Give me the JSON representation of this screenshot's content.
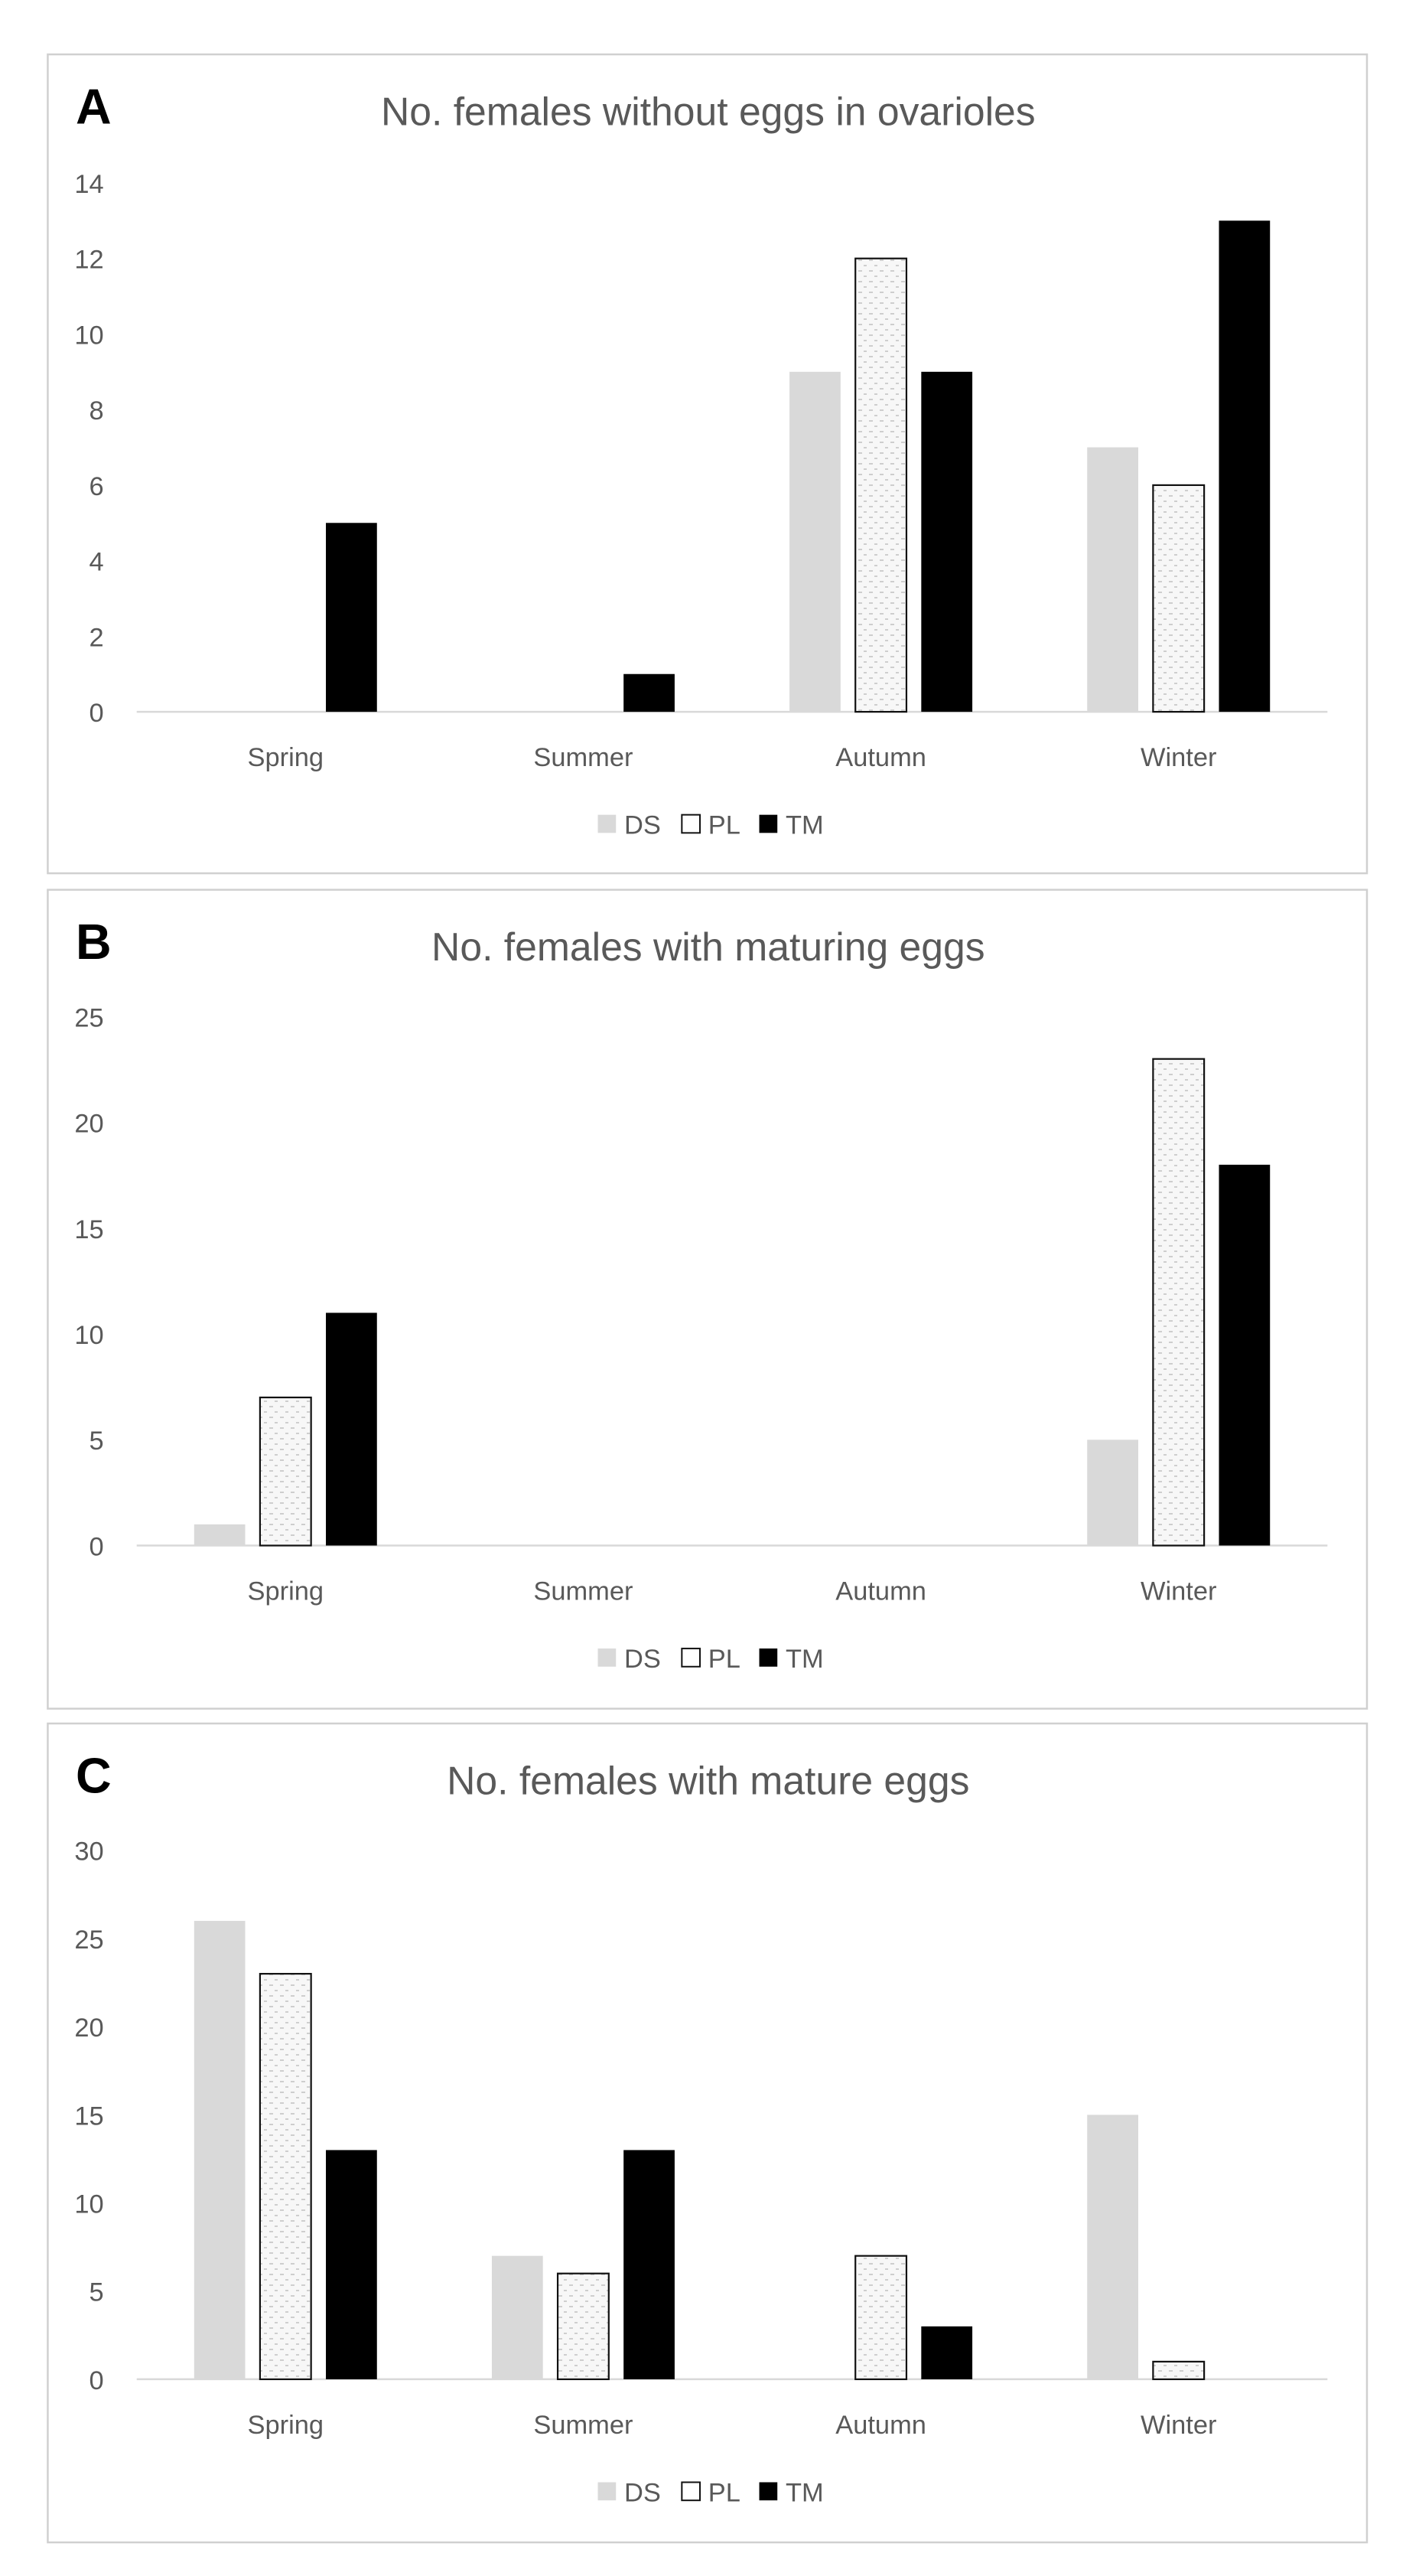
{
  "colors": {
    "DS": "#d9d9d9",
    "PL_fill": "#f7f7f7",
    "PL_stroke": "#111111",
    "TM": "#000000",
    "axis": "#d9d9d9",
    "text": "#595959",
    "panel_border": "#d0d0d0"
  },
  "chart_data": [
    {
      "type": "bar",
      "panel_label": "A",
      "title": "No. females without eggs in ovarioles",
      "categories": [
        "Spring",
        "Summer",
        "Autumn",
        "Winter"
      ],
      "series": [
        {
          "name": "DS",
          "values": [
            0,
            0,
            9,
            7
          ]
        },
        {
          "name": "PL",
          "values": [
            0,
            0,
            12,
            6
          ]
        },
        {
          "name": "TM",
          "values": [
            5,
            1,
            9,
            13
          ]
        }
      ],
      "ylim": [
        0,
        14
      ],
      "yticks": [
        0,
        2,
        4,
        6,
        8,
        10,
        12,
        14
      ],
      "xlabel": "",
      "ylabel": "",
      "grid": false,
      "legend": "bottom-center"
    },
    {
      "type": "bar",
      "panel_label": "B",
      "title": "No. females with maturing eggs",
      "categories": [
        "Spring",
        "Summer",
        "Autumn",
        "Winter"
      ],
      "series": [
        {
          "name": "DS",
          "values": [
            1,
            0,
            0,
            5
          ]
        },
        {
          "name": "PL",
          "values": [
            7,
            0,
            0,
            23
          ]
        },
        {
          "name": "TM",
          "values": [
            11,
            0,
            0,
            18
          ]
        }
      ],
      "ylim": [
        0,
        25
      ],
      "yticks": [
        0,
        5,
        10,
        15,
        20,
        25
      ],
      "xlabel": "",
      "ylabel": "",
      "grid": false,
      "legend": "bottom-center"
    },
    {
      "type": "bar",
      "panel_label": "C",
      "title": "No. females with mature eggs",
      "categories": [
        "Spring",
        "Summer",
        "Autumn",
        "Winter"
      ],
      "series": [
        {
          "name": "DS",
          "values": [
            26,
            7,
            0,
            15
          ]
        },
        {
          "name": "PL",
          "values": [
            23,
            6,
            7,
            1
          ]
        },
        {
          "name": "TM",
          "values": [
            13,
            13,
            3,
            0
          ]
        }
      ],
      "ylim": [
        0,
        30
      ],
      "yticks": [
        0,
        5,
        10,
        15,
        20,
        25,
        30
      ],
      "xlabel": "",
      "ylabel": "",
      "grid": false,
      "legend": "bottom-center"
    }
  ]
}
